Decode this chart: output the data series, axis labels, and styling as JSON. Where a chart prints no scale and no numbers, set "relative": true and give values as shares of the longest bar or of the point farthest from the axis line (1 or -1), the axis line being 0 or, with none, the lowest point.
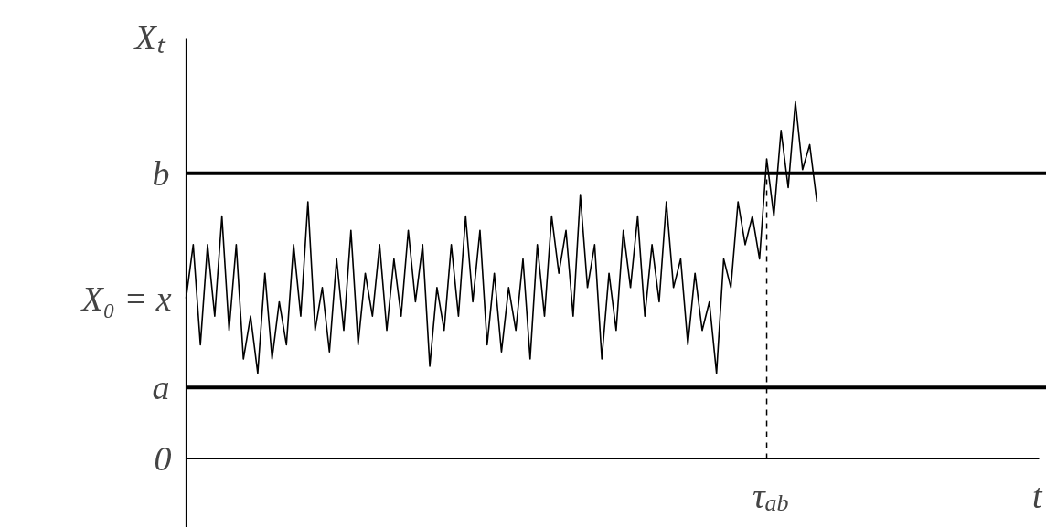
{
  "chart_data": {
    "type": "line",
    "relative": true,
    "ylabel": "Xₜ",
    "categories": [
      null,
      null,
      null,
      null,
      null,
      null,
      null,
      null,
      null,
      null,
      null,
      null,
      null,
      null,
      null,
      null,
      null,
      null,
      null,
      null,
      null,
      null,
      null,
      null,
      null,
      null,
      null,
      null,
      null,
      null,
      null,
      null,
      null,
      null,
      null,
      null,
      null,
      null,
      null,
      null,
      null,
      null,
      null,
      null,
      null,
      null,
      null,
      null,
      null,
      null,
      null,
      null,
      null,
      null,
      null,
      null,
      null,
      null,
      null,
      null,
      null,
      null,
      null,
      null,
      null,
      null,
      null,
      null,
      null,
      null,
      null,
      null,
      null,
      null,
      null,
      null,
      null,
      null,
      null,
      null,
      null,
      null,
      null,
      null,
      null,
      null,
      null,
      null,
      null
    ],
    "series": [
      {
        "color": "#000000",
        "values": [
          0.45,
          0.6,
          0.32,
          0.6,
          0.4,
          0.68,
          0.36,
          0.6,
          0.28,
          0.4,
          0.24,
          0.52,
          0.28,
          0.44,
          0.32,
          0.6,
          0.4,
          0.72,
          0.36,
          0.48,
          0.3,
          0.56,
          0.36,
          0.64,
          0.32,
          0.52,
          0.4,
          0.6,
          0.36,
          0.56,
          0.4,
          0.64,
          0.44,
          0.6,
          0.26,
          0.48,
          0.36,
          0.6,
          0.4,
          0.68,
          0.44,
          0.64,
          0.32,
          0.52,
          0.3,
          0.48,
          0.36,
          0.56,
          0.28,
          0.6,
          0.4,
          0.68,
          0.52,
          0.64,
          0.4,
          0.74,
          0.48,
          0.6,
          0.28,
          0.52,
          0.36,
          0.64,
          0.48,
          0.68,
          0.4,
          0.6,
          0.44,
          0.72,
          0.48,
          0.56,
          0.32,
          0.52,
          0.36,
          0.44,
          0.24,
          0.56,
          0.48,
          0.72,
          0.6,
          0.68,
          0.56,
          0.84,
          0.68,
          0.92,
          0.76,
          1,
          0.81,
          0.88,
          0.72
        ]
      }
    ],
    "ref_lines": [
      {
        "axis": "y",
        "value": 0.8,
        "label": "b",
        "color": "#000000",
        "line_style": "solid"
      },
      {
        "axis": "y",
        "value": 0.2,
        "label": "a",
        "color": "#000000",
        "line_style": "solid"
      }
    ],
    "annotations": [
      "X₀ = x",
      "0",
      "τ$_{ab}$",
      "t"
    ]
  }
}
